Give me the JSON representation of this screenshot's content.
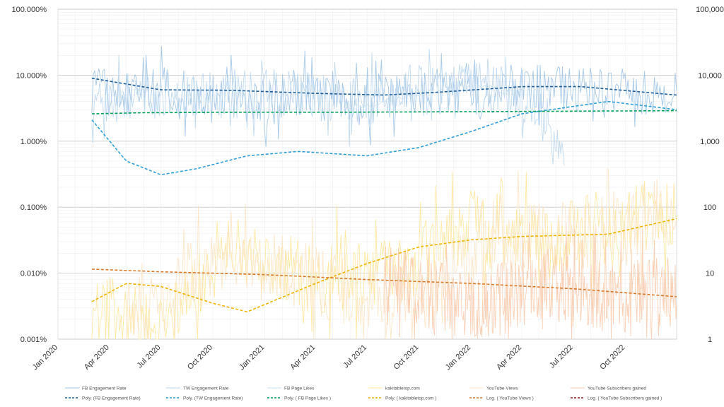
{
  "chart_data": {
    "type": "line",
    "x_tick_labels": [
      "Jan 2020",
      "Apr 2020",
      "Jul 2020",
      "Oct 2020",
      "Jan 2021",
      "Apr 2021",
      "Jul 2021",
      "Oct 2021",
      "Jan 2022",
      "Apr 2022",
      "Jul 2022",
      "Oct 2022"
    ],
    "x_range": [
      "2020-01-01",
      "2022-12-31"
    ],
    "y_left": {
      "scale": "log",
      "range": [
        0.001,
        100
      ],
      "tick_labels": [
        "0.001%",
        "0.010%",
        "0.100%",
        "1.000%",
        "10.000%",
        "100.000%"
      ]
    },
    "y_right": {
      "scale": "log",
      "range": [
        1,
        100000
      ],
      "tick_labels": [
        "1",
        "10",
        "100",
        "1,000",
        "10,000",
        "100,000"
      ]
    },
    "grid": true,
    "legend_position": "bottom",
    "series": [
      {
        "name": "FB Engagement Rate",
        "axis": "left",
        "color": "#9dc3e6",
        "style": "solid",
        "points": [
          [
            "2020-03-01",
            6
          ],
          [
            "2020-05-01",
            5
          ],
          [
            "2020-07-15",
            6
          ],
          [
            "2020-10-01",
            5
          ],
          [
            "2021-01-01",
            4
          ],
          [
            "2021-04-01",
            6
          ],
          [
            "2021-07-01",
            4
          ],
          [
            "2021-10-01",
            6
          ],
          [
            "2022-01-01",
            5
          ],
          [
            "2022-04-01",
            7
          ],
          [
            "2022-07-01",
            6
          ],
          [
            "2022-10-01",
            6
          ],
          [
            "2022-12-31",
            5
          ]
        ]
      },
      {
        "name": "TW Engagement Rate",
        "axis": "left",
        "color": "#bdd7ee",
        "style": "solid",
        "points": [
          [
            "2020-03-01",
            4
          ],
          [
            "2020-08-01",
            5
          ],
          [
            "2021-01-01",
            6
          ],
          [
            "2021-06-01",
            4
          ],
          [
            "2021-10-01",
            7
          ],
          [
            "2022-02-01",
            8
          ],
          [
            "2022-05-01",
            3
          ],
          [
            "2022-06-15",
            0.4
          ]
        ]
      },
      {
        "name": "FB Page Likes",
        "axis": "right",
        "color": "#c9e0f0",
        "style": "solid",
        "points": [
          [
            "2021-06-01",
            3200
          ],
          [
            "2021-10-01",
            5000
          ],
          [
            "2022-01-01",
            7000
          ],
          [
            "2022-04-01",
            5000
          ]
        ]
      },
      {
        "name": "kakitabletop.com",
        "axis": "right",
        "color": "#ffe699",
        "style": "solid",
        "points": [
          [
            "2020-03-01",
            3
          ],
          [
            "2020-07-01",
            1.5
          ],
          [
            "2020-11-01",
            30
          ],
          [
            "2021-04-01",
            8
          ],
          [
            "2021-09-01",
            10
          ],
          [
            "2022-01-01",
            60
          ],
          [
            "2022-05-01",
            25
          ],
          [
            "2022-09-01",
            60
          ],
          [
            "2022-12-31",
            90
          ]
        ]
      },
      {
        "name": "YouTube Views",
        "axis": "right",
        "color": "#fce4c4",
        "style": "solid",
        "points": [
          [
            "2020-05-01",
            2
          ],
          [
            "2020-11-01",
            20
          ],
          [
            "2021-05-01",
            6
          ],
          [
            "2021-10-01",
            4
          ],
          [
            "2022-02-01",
            30
          ],
          [
            "2022-08-01",
            40
          ],
          [
            "2022-12-31",
            100
          ]
        ]
      },
      {
        "name": "YouTube Subscribers gained",
        "axis": "right",
        "color": "#f8cbad",
        "style": "solid",
        "points": [
          [
            "2021-08-01",
            8
          ],
          [
            "2022-01-01",
            3
          ],
          [
            "2022-05-01",
            6
          ],
          [
            "2022-09-01",
            4
          ],
          [
            "2022-12-31",
            6
          ]
        ]
      },
      {
        "name": "Poly. (FB Engagement Rate)",
        "axis": "left",
        "color": "#1f5f99",
        "style": "dashed",
        "points": [
          [
            "2020-03-01",
            9
          ],
          [
            "2020-07-01",
            6
          ],
          [
            "2020-11-01",
            5.9
          ],
          [
            "2021-04-01",
            5.3
          ],
          [
            "2021-08-01",
            5
          ],
          [
            "2021-11-01",
            5.5
          ],
          [
            "2022-04-01",
            6.7
          ],
          [
            "2022-07-15",
            6.7
          ],
          [
            "2022-12-31",
            5
          ]
        ]
      },
      {
        "name": "Poly. (TW Engagement Rate)",
        "axis": "left",
        "color": "#2e9ed8",
        "style": "dashed",
        "points": [
          [
            "2020-03-01",
            2.1
          ],
          [
            "2020-05-01",
            0.5
          ],
          [
            "2020-07-01",
            0.31
          ],
          [
            "2020-09-01",
            0.38
          ],
          [
            "2020-12-01",
            0.6
          ],
          [
            "2021-03-01",
            0.7
          ],
          [
            "2021-07-01",
            0.6
          ],
          [
            "2021-10-01",
            0.8
          ],
          [
            "2022-01-01",
            1.4
          ],
          [
            "2022-04-01",
            2.6
          ],
          [
            "2022-09-01",
            4
          ],
          [
            "2022-12-31",
            3
          ]
        ]
      },
      {
        "name": "Poly. ( FB Page Likes )",
        "axis": "right",
        "color": "#00a05a",
        "style": "dashed",
        "points": [
          [
            "2020-03-01",
            2600
          ],
          [
            "2020-06-01",
            2700
          ],
          [
            "2020-12-01",
            2750
          ],
          [
            "2021-06-01",
            2750
          ],
          [
            "2022-01-01",
            2800
          ],
          [
            "2022-12-31",
            2900
          ]
        ]
      },
      {
        "name": "Poly. ( kakitabletop.com )",
        "axis": "right",
        "color": "#f0b400",
        "style": "dashed",
        "points": [
          [
            "2020-03-01",
            3.7
          ],
          [
            "2020-05-01",
            7
          ],
          [
            "2020-07-01",
            6.3
          ],
          [
            "2020-10-01",
            3.5
          ],
          [
            "2020-12-01",
            2.6
          ],
          [
            "2021-04-01",
            7
          ],
          [
            "2021-07-01",
            14
          ],
          [
            "2021-10-01",
            25
          ],
          [
            "2022-01-01",
            32
          ],
          [
            "2022-04-01",
            36
          ],
          [
            "2022-09-01",
            39
          ],
          [
            "2022-12-31",
            67
          ]
        ]
      },
      {
        "name": "Log. ( YouTube Views )",
        "axis": "right",
        "color": "#d97a2b",
        "style": "dashed",
        "points": [
          [
            "2020-03-01",
            11.5
          ],
          [
            "2020-07-01",
            10.5
          ],
          [
            "2021-01-01",
            9.5
          ],
          [
            "2021-07-01",
            8
          ],
          [
            "2022-01-01",
            7
          ],
          [
            "2022-07-01",
            5.8
          ],
          [
            "2022-12-31",
            4.4
          ]
        ]
      },
      {
        "name": "Log. ( YouTube Subscribers gained )",
        "axis": "right",
        "color": "#8b1a1a",
        "style": "dashed",
        "points": []
      }
    ]
  }
}
